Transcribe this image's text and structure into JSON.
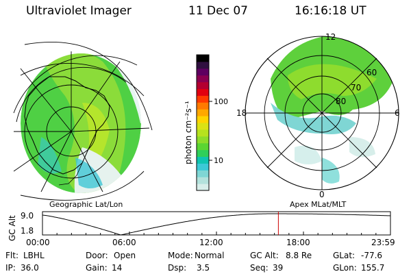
{
  "header": {
    "instrument": "Ultraviolet Imager",
    "date": "11 Dec 07",
    "time": "16:16:18 UT"
  },
  "left_panel": {
    "label": "Geographic Lat/Lon"
  },
  "right_panel": {
    "label": "Apex MLat/MLT",
    "mlt_labels": [
      "12",
      "18",
      "6",
      "0"
    ],
    "lat_labels": [
      "60",
      "70",
      "80"
    ]
  },
  "colorbar": {
    "unit_label": "photon cm⁻²s⁻¹",
    "ticks": [
      "100",
      "10"
    ],
    "colors": [
      "#d7eeea",
      "#b3e2dc",
      "#7fd6d4",
      "#3cc9d6",
      "#0fc4b0",
      "#2fcf5a",
      "#5ad532",
      "#8ddc2a",
      "#b6e21e",
      "#dbe214",
      "#ffd400",
      "#ffa800",
      "#ff7a00",
      "#ff3a00",
      "#e10010",
      "#b40030",
      "#8a0050",
      "#5e0060",
      "#301040",
      "#000000"
    ]
  },
  "altitude_plot": {
    "ylabel": "GC Alt",
    "yticks": [
      "9.0",
      "1.8"
    ],
    "xticks": [
      "00:00",
      "06:00",
      "12:00",
      "18:00",
      "23:59"
    ],
    "current_marker_hour": 16.27
  },
  "status": {
    "row1": [
      {
        "key": "Flt:",
        "value": "LBHL"
      },
      {
        "key": "Door:",
        "value": "Open"
      },
      {
        "key": "Mode:",
        "value": "Normal"
      },
      {
        "key": "GC Alt:",
        "value": "8.8 Re"
      },
      {
        "key": "GLat:",
        "value": "-77.6"
      }
    ],
    "row2": [
      {
        "key": "IP:",
        "value": "36.0"
      },
      {
        "key": "Gain:",
        "value": "14"
      },
      {
        "key": "Dsp:",
        "value": "3.5"
      },
      {
        "key": "Seq:",
        "value": "39"
      },
      {
        "key": "GLon:",
        "value": "155.7"
      }
    ]
  }
}
